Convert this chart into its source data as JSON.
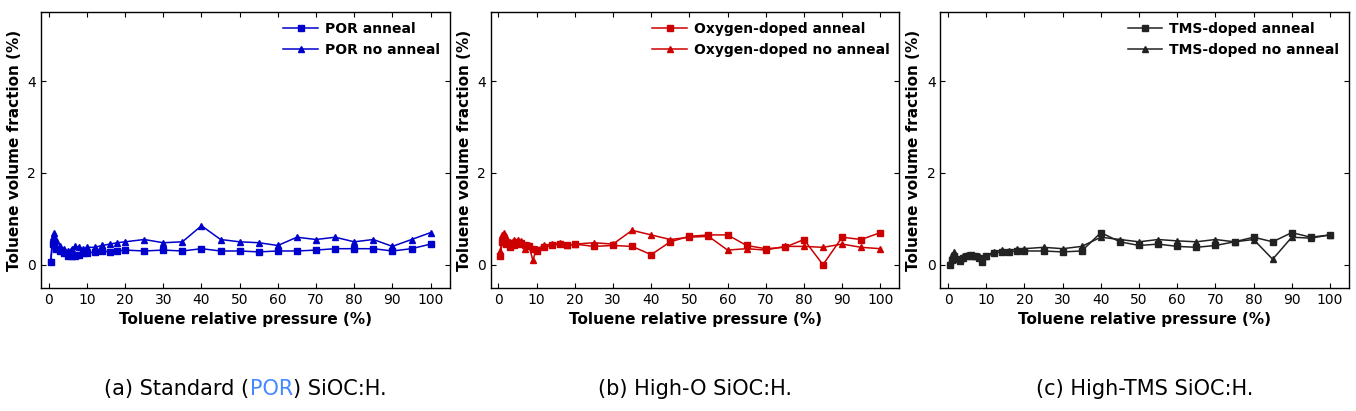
{
  "subplot_a": {
    "legend_label1": "POR anneal",
    "legend_label2": "POR no anneal",
    "color": "#0000CC",
    "series1_x": [
      0.5,
      1,
      1.5,
      2,
      3,
      4,
      5,
      6,
      7,
      8,
      9,
      10,
      12,
      14,
      16,
      18,
      20,
      25,
      30,
      35,
      40,
      45,
      50,
      55,
      60,
      65,
      70,
      75,
      80,
      85,
      90,
      95,
      100
    ],
    "series1_y": [
      0.05,
      0.45,
      0.5,
      0.35,
      0.3,
      0.25,
      0.2,
      0.18,
      0.2,
      0.22,
      0.25,
      0.25,
      0.28,
      0.3,
      0.28,
      0.3,
      0.32,
      0.3,
      0.32,
      0.3,
      0.35,
      0.3,
      0.3,
      0.28,
      0.3,
      0.3,
      0.32,
      0.35,
      0.35,
      0.35,
      0.3,
      0.35,
      0.45
    ],
    "series2_x": [
      0.5,
      1,
      1.5,
      2,
      3,
      4,
      5,
      6,
      7,
      8,
      9,
      10,
      12,
      14,
      16,
      18,
      20,
      25,
      30,
      35,
      40,
      45,
      50,
      55,
      60,
      65,
      70,
      75,
      80,
      85,
      90,
      95,
      100
    ],
    "series2_y": [
      0.08,
      0.6,
      0.7,
      0.55,
      0.4,
      0.35,
      0.3,
      0.35,
      0.4,
      0.38,
      0.35,
      0.38,
      0.38,
      0.42,
      0.45,
      0.48,
      0.5,
      0.55,
      0.48,
      0.5,
      0.85,
      0.55,
      0.5,
      0.48,
      0.42,
      0.6,
      0.55,
      0.6,
      0.5,
      0.55,
      0.4,
      0.55,
      0.7
    ]
  },
  "subplot_b": {
    "legend_label1": "Oxygen-doped anneal",
    "legend_label2": "Oxygen-doped no anneal",
    "color": "#CC0000",
    "series1_x": [
      0.5,
      1,
      1.5,
      2,
      3,
      4,
      5,
      6,
      7,
      8,
      9,
      10,
      12,
      14,
      16,
      18,
      20,
      25,
      30,
      35,
      40,
      45,
      50,
      55,
      60,
      65,
      70,
      75,
      80,
      85,
      90,
      95,
      100
    ],
    "series1_y": [
      0.2,
      0.5,
      0.55,
      0.45,
      0.38,
      0.42,
      0.45,
      0.48,
      0.42,
      0.4,
      0.35,
      0.3,
      0.38,
      0.42,
      0.45,
      0.42,
      0.45,
      0.4,
      0.42,
      0.4,
      0.22,
      0.5,
      0.62,
      0.65,
      0.65,
      0.42,
      0.35,
      0.38,
      0.55,
      0.0,
      0.6,
      0.55,
      0.7
    ],
    "series2_x": [
      0.5,
      1,
      1.5,
      2,
      3,
      4,
      5,
      6,
      7,
      8,
      9,
      10,
      12,
      14,
      16,
      18,
      20,
      25,
      30,
      35,
      40,
      45,
      50,
      55,
      60,
      65,
      70,
      75,
      80,
      85,
      90,
      95,
      100
    ],
    "series2_y": [
      0.3,
      0.65,
      0.7,
      0.6,
      0.5,
      0.55,
      0.55,
      0.52,
      0.35,
      0.42,
      0.1,
      0.35,
      0.42,
      0.45,
      0.48,
      0.42,
      0.45,
      0.48,
      0.45,
      0.75,
      0.65,
      0.55,
      0.6,
      0.62,
      0.32,
      0.35,
      0.32,
      0.4,
      0.4,
      0.38,
      0.45,
      0.38,
      0.35
    ]
  },
  "subplot_c": {
    "legend_label1": "TMS-doped anneal",
    "legend_label2": "TMS-doped no anneal",
    "color": "#222222",
    "series1_x": [
      0.5,
      1,
      1.5,
      2,
      3,
      4,
      5,
      6,
      7,
      8,
      9,
      10,
      12,
      14,
      16,
      18,
      20,
      25,
      30,
      35,
      40,
      45,
      50,
      55,
      60,
      65,
      70,
      75,
      80,
      85,
      90,
      95,
      100
    ],
    "series1_y": [
      0.0,
      0.1,
      0.18,
      0.12,
      0.08,
      0.15,
      0.2,
      0.22,
      0.18,
      0.15,
      0.05,
      0.18,
      0.25,
      0.28,
      0.28,
      0.3,
      0.3,
      0.3,
      0.28,
      0.3,
      0.7,
      0.5,
      0.42,
      0.45,
      0.4,
      0.38,
      0.42,
      0.5,
      0.6,
      0.5,
      0.7,
      0.6,
      0.65
    ],
    "series2_x": [
      0.5,
      1,
      1.5,
      2,
      3,
      4,
      5,
      6,
      7,
      8,
      9,
      10,
      12,
      14,
      16,
      18,
      20,
      25,
      30,
      35,
      40,
      45,
      50,
      55,
      60,
      65,
      70,
      75,
      80,
      85,
      90,
      95,
      100
    ],
    "series2_y": [
      0.05,
      0.22,
      0.28,
      0.15,
      0.12,
      0.18,
      0.22,
      0.2,
      0.2,
      0.18,
      0.1,
      0.2,
      0.28,
      0.32,
      0.3,
      0.35,
      0.35,
      0.38,
      0.35,
      0.4,
      0.6,
      0.55,
      0.5,
      0.55,
      0.52,
      0.5,
      0.55,
      0.5,
      0.55,
      0.12,
      0.6,
      0.58,
      0.65
    ]
  },
  "ylabel": "Toluene volume fraction (%)",
  "xlabel": "Toluene relative pressure (%)",
  "ylim": [
    -0.5,
    5.5
  ],
  "yticks": [
    0,
    2,
    4
  ],
  "xticks": [
    0,
    10,
    20,
    30,
    40,
    50,
    60,
    70,
    80,
    90,
    100
  ],
  "background_color": "#ffffff",
  "caption_fontsize": 15,
  "label_fontsize": 11,
  "tick_fontsize": 10,
  "legend_fontsize": 10,
  "caption_a_pre": "(a) Standard (",
  "caption_a_mid": "POR",
  "caption_a_mid_color": "#4488ff",
  "caption_a_post": ") SiOC:H.",
  "caption_b": "(b) High-O SiOC:H.",
  "caption_c": "(c) High-TMS SiOC:H."
}
